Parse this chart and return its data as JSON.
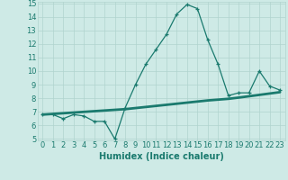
{
  "xlabel": "Humidex (Indice chaleur)",
  "x": [
    0,
    1,
    2,
    3,
    4,
    5,
    6,
    7,
    8,
    9,
    10,
    11,
    12,
    13,
    14,
    15,
    16,
    17,
    18,
    19,
    20,
    21,
    22,
    23
  ],
  "line1": [
    6.8,
    6.8,
    6.5,
    6.8,
    6.7,
    6.3,
    6.3,
    5.0,
    7.3,
    9.0,
    10.5,
    11.6,
    12.7,
    14.2,
    14.9,
    14.6,
    12.3,
    10.5,
    8.2,
    8.4,
    8.4,
    10.0,
    8.9,
    8.6
  ],
  "line2": [
    6.8,
    6.85,
    6.9,
    6.95,
    7.0,
    7.05,
    7.1,
    7.15,
    7.2,
    7.28,
    7.36,
    7.44,
    7.52,
    7.6,
    7.68,
    7.76,
    7.84,
    7.9,
    7.96,
    8.05,
    8.15,
    8.25,
    8.35,
    8.45
  ],
  "line_color": "#1a7a6e",
  "bg_color": "#ceeae6",
  "grid_color": "#b0d4ce",
  "ylim_min": 5,
  "ylim_max": 15,
  "yticks": [
    5,
    6,
    7,
    8,
    9,
    10,
    11,
    12,
    13,
    14,
    15
  ],
  "xlim_min": -0.5,
  "xlim_max": 23.5,
  "tick_fontsize": 6,
  "xlabel_fontsize": 7
}
